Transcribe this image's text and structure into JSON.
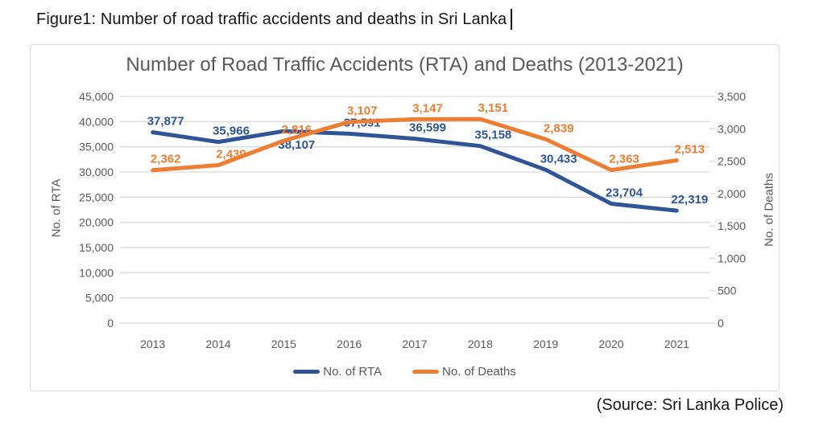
{
  "page": {
    "caption": "Figure1: Number of road traffic accidents and deaths in Sri Lanka",
    "source": "(Source: Sri Lanka Police)"
  },
  "chart_data": {
    "type": "line",
    "title": "Number of Road Traffic Accidents (RTA) and Deaths (2013-2021)",
    "categories": [
      "2013",
      "2014",
      "2015",
      "2016",
      "2017",
      "2018",
      "2019",
      "2020",
      "2021"
    ],
    "series": [
      {
        "name": "No. of RTA",
        "axis": "left",
        "color": "#2F5597",
        "values": [
          37877,
          35966,
          38107,
          37591,
          36599,
          35158,
          30433,
          23704,
          22319
        ],
        "data_labels": [
          "37,877",
          "35,966",
          "38,107",
          "37,591",
          "36,599",
          "35,158",
          "30,433",
          "23,704",
          "22,319"
        ],
        "labels_below_indices": [
          2
        ]
      },
      {
        "name": "No. of Deaths",
        "axis": "right",
        "color": "#ED7D31",
        "values": [
          2362,
          2439,
          2816,
          3107,
          3147,
          3151,
          2839,
          2363,
          2513
        ],
        "data_labels": [
          "2,362",
          "2,439",
          "2,816",
          "3,107",
          "3,147",
          "3,151",
          "2,839",
          "2,363",
          "2,513"
        ],
        "labels_below_indices": []
      }
    ],
    "left_axis": {
      "title": "No. of RTA",
      "min": 0,
      "max": 45000,
      "step": 5000,
      "tick_labels_top_down": [
        "45,000",
        "40,000",
        "35,000",
        "30,000",
        "25,000",
        "20,000",
        "15,000",
        "10,000",
        "5,000",
        "0"
      ]
    },
    "right_axis": {
      "title": "No. of Deaths",
      "min": 0,
      "max": 3500,
      "step": 500,
      "tick_labels_top_down": [
        "3,500",
        "3,000",
        "2,500",
        "2,000",
        "1,500",
        "1,000",
        "500",
        "0"
      ]
    },
    "grid": true,
    "legend_position": "bottom",
    "styles": {
      "grid_color": "#D9D9D9",
      "axis_text_color": "#595959",
      "title_color": "#595959",
      "chart_border_color": "#D9D9D9",
      "line_width": 5
    }
  }
}
